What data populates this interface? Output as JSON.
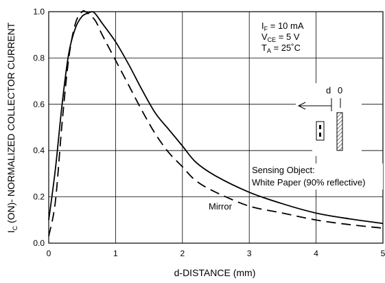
{
  "chart_data": {
    "type": "line",
    "xlabel": "d-DISTANCE (mm)",
    "ylabel": {
      "prefix": "I",
      "sub": "C",
      "rest": " (ON)- NORMALIZED COLLECTOR CURRENT"
    },
    "xlim": [
      0,
      5
    ],
    "ylim": [
      0,
      1.0
    ],
    "x_ticks": [
      "0",
      "1",
      "2",
      "3",
      "4",
      "5"
    ],
    "y_ticks": [
      "0.0",
      "0.2",
      "0.4",
      "0.6",
      "0.8",
      "1.0"
    ],
    "grid": true,
    "conditions": [
      {
        "main": "I",
        "sub": "F",
        "rest": " = 10 mA"
      },
      {
        "main": "V",
        "sub": "CE",
        "rest": " = 5 V"
      },
      {
        "main": "T",
        "sub": "A",
        "rest": " = 25˚C"
      }
    ],
    "series": [
      {
        "name": "Sensing Object: White Paper (90% reflective)",
        "style": "solid",
        "x": [
          0,
          0.1,
          0.2,
          0.3,
          0.4,
          0.5,
          0.6,
          0.65,
          0.7,
          0.8,
          1.0,
          1.2,
          1.4,
          1.6,
          1.8,
          2.0,
          2.2,
          2.5,
          3.0,
          3.5,
          4.0,
          4.5,
          5.0
        ],
        "y": [
          0.1,
          0.32,
          0.6,
          0.82,
          0.93,
          0.98,
          0.995,
          1.0,
          0.99,
          0.95,
          0.87,
          0.77,
          0.66,
          0.56,
          0.49,
          0.42,
          0.35,
          0.29,
          0.22,
          0.17,
          0.13,
          0.105,
          0.085
        ]
      },
      {
        "name": "Mirror",
        "style": "dashed",
        "x": [
          0,
          0.1,
          0.2,
          0.3,
          0.4,
          0.5,
          0.55,
          0.6,
          0.7,
          0.8,
          1.0,
          1.2,
          1.4,
          1.6,
          1.8,
          2.0,
          2.2,
          2.5,
          3.0,
          3.5,
          4.0,
          4.5,
          5.0
        ],
        "y": [
          0.03,
          0.18,
          0.52,
          0.8,
          0.95,
          1.0,
          1.0,
          0.99,
          0.96,
          0.9,
          0.79,
          0.68,
          0.57,
          0.47,
          0.39,
          0.33,
          0.27,
          0.22,
          0.16,
          0.13,
          0.1,
          0.08,
          0.065
        ]
      }
    ],
    "annotations": {
      "sensing_line1": "Sensing Object:",
      "sensing_line2": "White Paper (90% reflective)",
      "mirror": "Mirror",
      "d_label": "d",
      "zero_label": "0"
    }
  }
}
